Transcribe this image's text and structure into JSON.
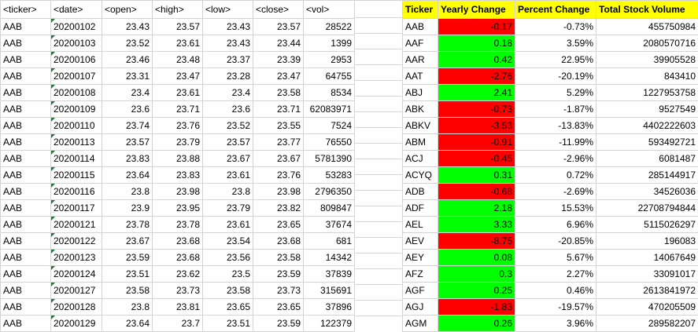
{
  "raw": {
    "headers": [
      "<ticker>",
      "<date>",
      "<open>",
      "<high>",
      "<low>",
      "<close>",
      "<vol>"
    ],
    "rows": [
      [
        "AAB",
        "20200102",
        "23.43",
        "23.57",
        "23.43",
        "23.57",
        "28522"
      ],
      [
        "AAB",
        "20200103",
        "23.52",
        "23.61",
        "23.43",
        "23.44",
        "1399"
      ],
      [
        "AAB",
        "20200106",
        "23.46",
        "23.48",
        "23.37",
        "23.39",
        "2953"
      ],
      [
        "AAB",
        "20200107",
        "23.31",
        "23.47",
        "23.28",
        "23.47",
        "64755"
      ],
      [
        "AAB",
        "20200108",
        "23.4",
        "23.61",
        "23.4",
        "23.58",
        "8534"
      ],
      [
        "AAB",
        "20200109",
        "23.6",
        "23.71",
        "23.6",
        "23.71",
        "62083971"
      ],
      [
        "AAB",
        "20200110",
        "23.74",
        "23.76",
        "23.52",
        "23.55",
        "7524"
      ],
      [
        "AAB",
        "20200113",
        "23.57",
        "23.79",
        "23.57",
        "23.77",
        "76550"
      ],
      [
        "AAB",
        "20200114",
        "23.83",
        "23.88",
        "23.67",
        "23.67",
        "5781390"
      ],
      [
        "AAB",
        "20200115",
        "23.64",
        "23.83",
        "23.61",
        "23.76",
        "53283"
      ],
      [
        "AAB",
        "20200116",
        "23.8",
        "23.98",
        "23.8",
        "23.98",
        "2796350"
      ],
      [
        "AAB",
        "20200117",
        "23.9",
        "23.95",
        "23.79",
        "23.82",
        "809847"
      ],
      [
        "AAB",
        "20200121",
        "23.78",
        "23.78",
        "23.61",
        "23.65",
        "37674"
      ],
      [
        "AAB",
        "20200122",
        "23.67",
        "23.68",
        "23.54",
        "23.68",
        "681"
      ],
      [
        "AAB",
        "20200123",
        "23.59",
        "23.68",
        "23.56",
        "23.58",
        "14342"
      ],
      [
        "AAB",
        "20200124",
        "23.51",
        "23.62",
        "23.5",
        "23.59",
        "37839"
      ],
      [
        "AAB",
        "20200127",
        "23.58",
        "23.73",
        "23.58",
        "23.73",
        "315691"
      ],
      [
        "AAB",
        "20200128",
        "23.8",
        "23.81",
        "23.65",
        "23.65",
        "37896"
      ],
      [
        "AAB",
        "20200129",
        "23.64",
        "23.7",
        "23.51",
        "23.59",
        "122379"
      ]
    ]
  },
  "summary": {
    "headers": [
      "Ticker",
      "Yearly Change",
      "Percent Change",
      "Total Stock Volume"
    ],
    "colors": {
      "positive": "#00ff00",
      "negative": "#ff0000",
      "header": "#ffff00"
    },
    "rows": [
      [
        "AAB",
        "-0.17",
        "-0.73%",
        "455750984"
      ],
      [
        "AAF",
        "0.18",
        "3.59%",
        "2080570716"
      ],
      [
        "AAR",
        "0.42",
        "22.95%",
        "39905528"
      ],
      [
        "AAT",
        "-2.76",
        "-20.19%",
        "843410"
      ],
      [
        "ABJ",
        "2.41",
        "5.29%",
        "1227953758"
      ],
      [
        "ABK",
        "-0.73",
        "-1.87%",
        "9527549"
      ],
      [
        "ABKV",
        "-3.53",
        "-13.83%",
        "4402222603"
      ],
      [
        "ABM",
        "-0.91",
        "-11.99%",
        "593492721"
      ],
      [
        "ACJ",
        "-0.45",
        "-2.96%",
        "6081487"
      ],
      [
        "ACYQ",
        "0.31",
        "0.72%",
        "285144917"
      ],
      [
        "ADB",
        "-0.68",
        "-2.69%",
        "34526036"
      ],
      [
        "ADF",
        "2.18",
        "15.53%",
        "22708794844"
      ],
      [
        "AEL",
        "3.33",
        "6.96%",
        "5115026297"
      ],
      [
        "AEV",
        "-8.75",
        "-20.85%",
        "196083"
      ],
      [
        "AEY",
        "0.08",
        "5.67%",
        "14067649"
      ],
      [
        "AFZ",
        "0.3",
        "2.27%",
        "33091017"
      ],
      [
        "AGF",
        "0.25",
        "0.46%",
        "2613841972"
      ],
      [
        "AGJ",
        "-1.83",
        "-19.57%",
        "470205509"
      ],
      [
        "AGM",
        "0.26",
        "3.96%",
        "289582207"
      ]
    ]
  }
}
